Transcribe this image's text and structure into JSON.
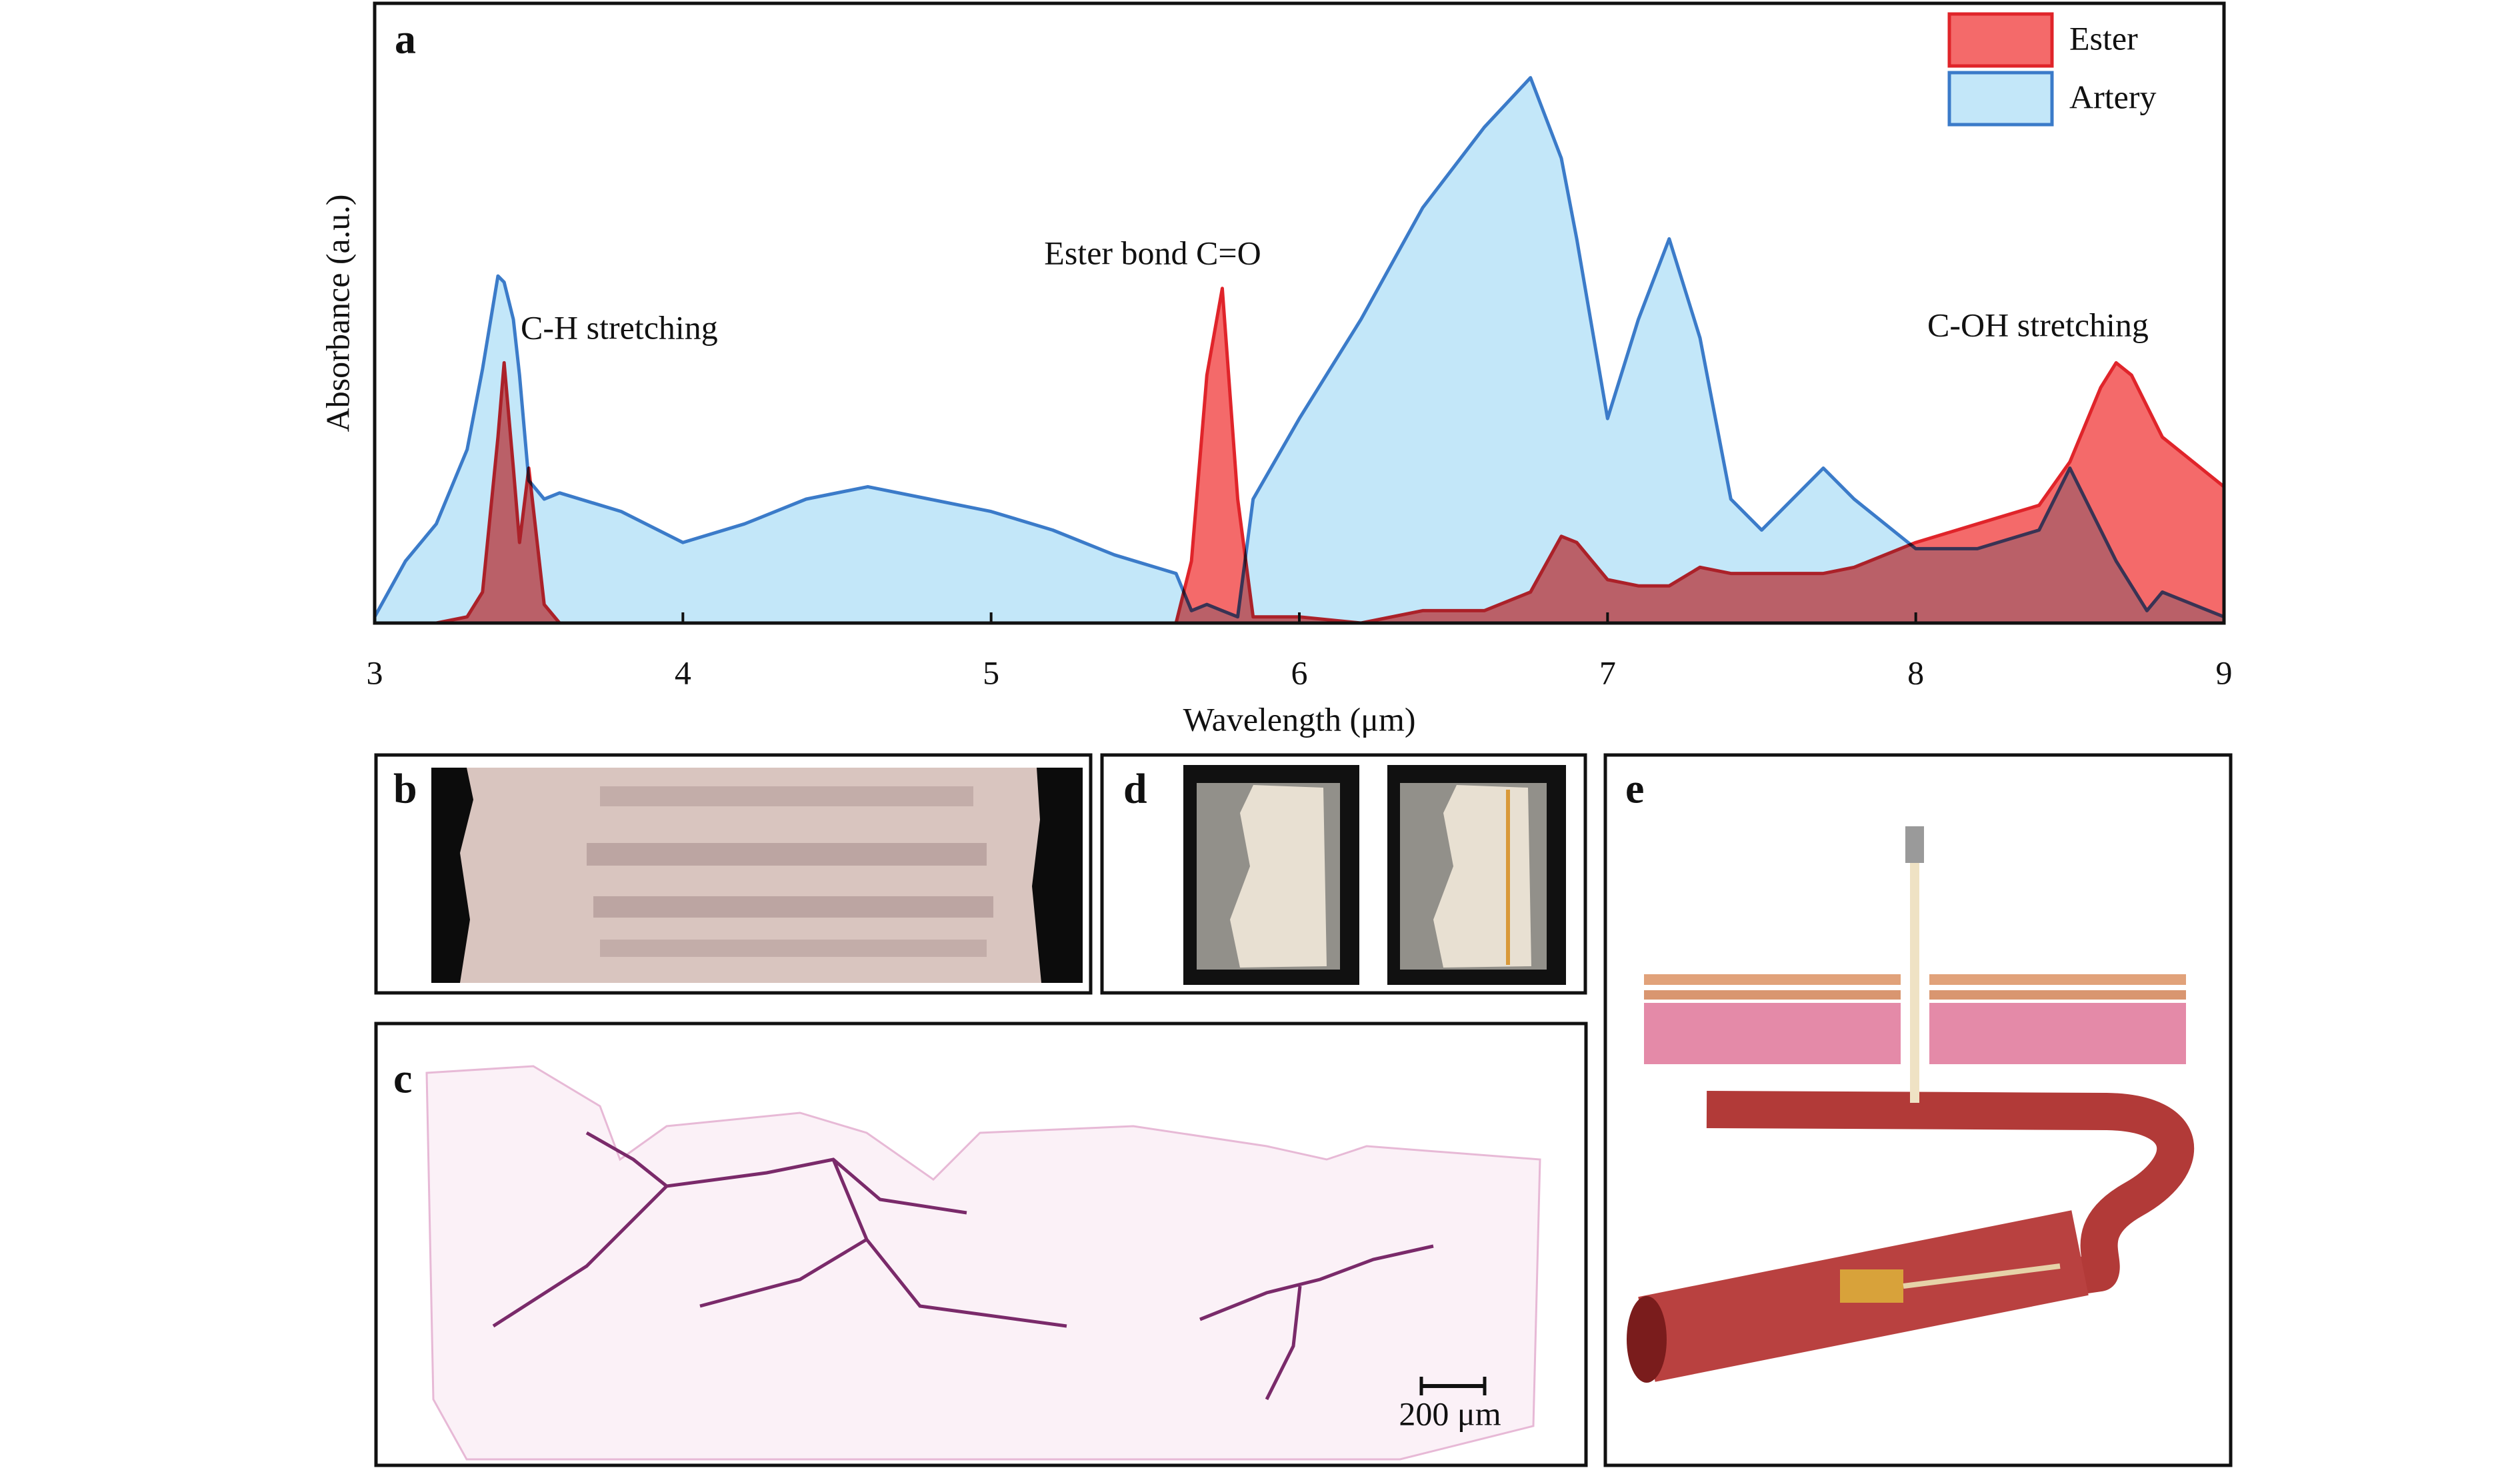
{
  "chart_data": {
    "type": "area",
    "panel_label": "a",
    "xlabel": "Wavelength (μm)",
    "ylabel": "Absorbance (a.u.)",
    "x": [
      3.0,
      3.1,
      3.2,
      3.3,
      3.35,
      3.4,
      3.42,
      3.45,
      3.47,
      3.5,
      3.55,
      3.6,
      3.8,
      4.0,
      4.2,
      4.4,
      4.6,
      4.8,
      5.0,
      5.2,
      5.4,
      5.6,
      5.65,
      5.7,
      5.75,
      5.8,
      5.85,
      6.0,
      6.2,
      6.4,
      6.6,
      6.75,
      6.85,
      6.9,
      7.0,
      7.1,
      7.2,
      7.3,
      7.4,
      7.5,
      7.7,
      7.8,
      8.0,
      8.2,
      8.4,
      8.5,
      8.6,
      8.65,
      8.7,
      8.75,
      8.8,
      9.0
    ],
    "series": [
      {
        "name": "Ester",
        "color": "#f46a6a",
        "edge_color": "#e0242a",
        "values": [
          0,
          0,
          0,
          0.01,
          0.05,
          0.3,
          0.42,
          0.25,
          0.13,
          0.25,
          0.03,
          0,
          0,
          0,
          0,
          0,
          0,
          0,
          0,
          0,
          0,
          0,
          0.1,
          0.4,
          0.54,
          0.2,
          0.01,
          0.01,
          0,
          0.02,
          0.02,
          0.05,
          0.14,
          0.13,
          0.07,
          0.06,
          0.06,
          0.09,
          0.08,
          0.08,
          0.08,
          0.09,
          0.13,
          0.16,
          0.19,
          0.26,
          0.38,
          0.42,
          0.4,
          0.35,
          0.3,
          0.22
        ]
      },
      {
        "name": "Artery",
        "color": "#c3e7f9",
        "edge_color": "#3b7bc9",
        "values": [
          0.01,
          0.1,
          0.16,
          0.28,
          0.41,
          0.56,
          0.55,
          0.49,
          0.4,
          0.23,
          0.2,
          0.21,
          0.18,
          0.13,
          0.16,
          0.2,
          0.22,
          0.2,
          0.18,
          0.15,
          0.11,
          0.08,
          0.02,
          0.03,
          0.02,
          0.01,
          0.2,
          0.33,
          0.49,
          0.67,
          0.8,
          0.88,
          0.75,
          0.62,
          0.33,
          0.49,
          0.62,
          0.46,
          0.2,
          0.15,
          0.25,
          0.2,
          0.12,
          0.12,
          0.15,
          0.25,
          0.15,
          0.1,
          0.06,
          0.02,
          0.05,
          0.01
        ]
      }
    ],
    "xlim": [
      3,
      9
    ],
    "ylim": [
      0,
      1
    ],
    "xticks": [
      3,
      4,
      5,
      6,
      7,
      8,
      9
    ],
    "annotations": [
      "C-H stretching",
      "Ester bond C=O",
      "C-OH stretching"
    ],
    "legend": "top-right"
  },
  "panels": [
    {
      "label": "b"
    },
    {
      "label": "c",
      "scale_bar": "200 μm"
    },
    {
      "label": "d"
    },
    {
      "label": "e"
    }
  ]
}
